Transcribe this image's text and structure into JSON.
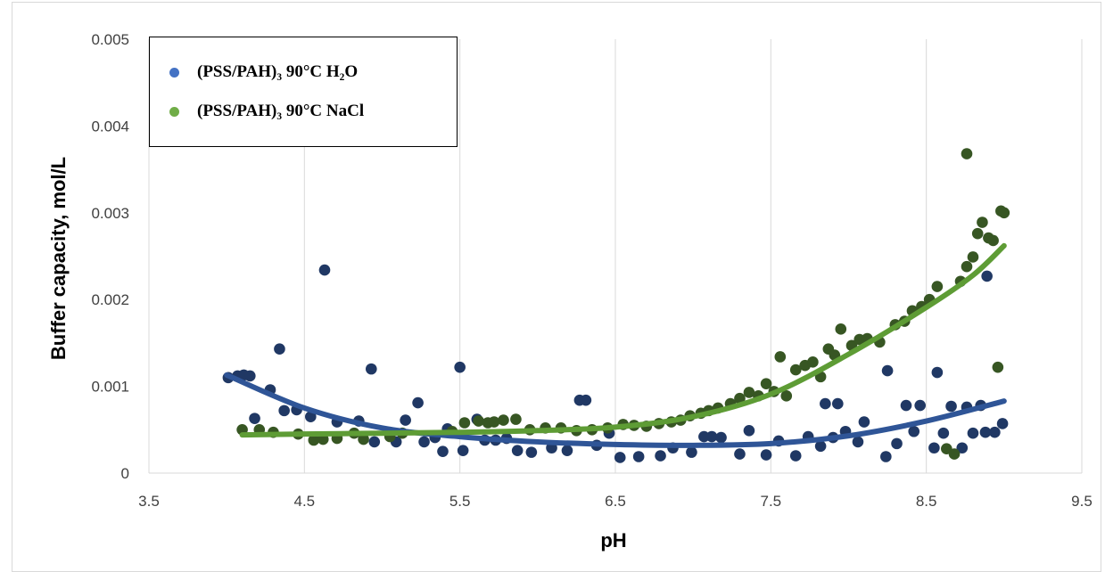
{
  "chart_data": {
    "type": "scatter",
    "xlabel": "pH",
    "ylabel": "Buffer capacity, mol/L",
    "xlim": [
      3.5,
      9.5
    ],
    "ylim": [
      0,
      0.005
    ],
    "x_ticks": [
      "3.5",
      "4.5",
      "5.5",
      "6.5",
      "7.5",
      "8.5",
      "9.5"
    ],
    "y_ticks": [
      "0",
      "0.001",
      "0.002",
      "0.003",
      "0.004",
      "0.005"
    ],
    "grid": "vertical",
    "legend_position": "top-left",
    "trendline": "polynomial",
    "series": [
      {
        "name": "(PSS/PAH)₃ 90°C H₂O",
        "marker_color": "#203864",
        "legend_color": "#4472c4",
        "trend_color": "#2f5597",
        "points": [
          [
            4.01,
            0.0011
          ],
          [
            4.07,
            0.00112
          ],
          [
            4.11,
            0.00113
          ],
          [
            4.15,
            0.00112
          ],
          [
            4.18,
            0.00063
          ],
          [
            4.28,
            0.00096
          ],
          [
            4.34,
            0.00143
          ],
          [
            4.37,
            0.00072
          ],
          [
            4.45,
            0.00073
          ],
          [
            4.54,
            0.00065
          ],
          [
            4.63,
            0.00234
          ],
          [
            4.71,
            0.00059
          ],
          [
            4.85,
            0.0006
          ],
          [
            4.93,
            0.0012
          ],
          [
            4.95,
            0.00036
          ],
          [
            5.05,
            0.00047
          ],
          [
            5.09,
            0.00036
          ],
          [
            5.15,
            0.00061
          ],
          [
            5.23,
            0.00081
          ],
          [
            5.27,
            0.00036
          ],
          [
            5.34,
            0.00041
          ],
          [
            5.39,
            0.00025
          ],
          [
            5.42,
            0.00051
          ],
          [
            5.5,
            0.00122
          ],
          [
            5.52,
            0.00026
          ],
          [
            5.61,
            0.00062
          ],
          [
            5.66,
            0.00038
          ],
          [
            5.73,
            0.00038
          ],
          [
            5.8,
            0.0004
          ],
          [
            5.87,
            0.00026
          ],
          [
            5.96,
            0.00024
          ],
          [
            6.09,
            0.00029
          ],
          [
            6.19,
            0.00026
          ],
          [
            6.27,
            0.00084
          ],
          [
            6.31,
            0.00084
          ],
          [
            6.38,
            0.00032
          ],
          [
            6.46,
            0.00046
          ],
          [
            6.53,
            0.00018
          ],
          [
            6.65,
            0.00019
          ],
          [
            6.79,
            0.0002
          ],
          [
            6.87,
            0.00029
          ],
          [
            6.99,
            0.00024
          ],
          [
            7.07,
            0.00042
          ],
          [
            7.12,
            0.00042
          ],
          [
            7.18,
            0.00041
          ],
          [
            7.3,
            0.00022
          ],
          [
            7.36,
            0.00049
          ],
          [
            7.47,
            0.00021
          ],
          [
            7.55,
            0.00037
          ],
          [
            7.66,
            0.0002
          ],
          [
            7.74,
            0.00042
          ],
          [
            7.82,
            0.00031
          ],
          [
            7.85,
            0.0008
          ],
          [
            7.9,
            0.00041
          ],
          [
            7.93,
            0.0008
          ],
          [
            7.98,
            0.00048
          ],
          [
            8.06,
            0.00036
          ],
          [
            8.1,
            0.00059
          ],
          [
            8.24,
            0.00019
          ],
          [
            8.25,
            0.00118
          ],
          [
            8.31,
            0.00034
          ],
          [
            8.37,
            0.00078
          ],
          [
            8.42,
            0.00048
          ],
          [
            8.46,
            0.00078
          ],
          [
            8.55,
            0.00029
          ],
          [
            8.57,
            0.00116
          ],
          [
            8.61,
            0.00046
          ],
          [
            8.66,
            0.00077
          ],
          [
            8.73,
            0.00029
          ],
          [
            8.76,
            0.00076
          ],
          [
            8.8,
            0.00046
          ],
          [
            8.85,
            0.00078
          ],
          [
            8.88,
            0.00047
          ],
          [
            8.89,
            0.00227
          ],
          [
            8.94,
            0.00047
          ],
          [
            8.99,
            0.00057
          ]
        ],
        "trend": [
          [
            4.0,
            0.00113
          ],
          [
            4.5,
            0.00075
          ],
          [
            5.0,
            0.00052
          ],
          [
            5.5,
            0.00042
          ],
          [
            6.0,
            0.00036
          ],
          [
            6.5,
            0.00033
          ],
          [
            7.0,
            0.00032
          ],
          [
            7.5,
            0.00034
          ],
          [
            8.0,
            0.00043
          ],
          [
            8.5,
            0.0006
          ],
          [
            9.0,
            0.00083
          ]
        ]
      },
      {
        "name": "(PSS/PAH)₃ 90°C NaCl",
        "marker_color": "#375623",
        "legend_color": "#70ad47",
        "trend_color": "#5e9c35",
        "points": [
          [
            4.1,
            0.0005
          ],
          [
            4.21,
            0.0005
          ],
          [
            4.3,
            0.00047
          ],
          [
            4.46,
            0.00045
          ],
          [
            4.56,
            0.00038
          ],
          [
            4.62,
            0.00039
          ],
          [
            4.71,
            0.0004
          ],
          [
            4.82,
            0.00046
          ],
          [
            4.88,
            0.00039
          ],
          [
            5.05,
            0.00042
          ],
          [
            5.13,
            0.00046
          ],
          [
            5.45,
            0.00048
          ],
          [
            5.53,
            0.00058
          ],
          [
            5.62,
            0.0006
          ],
          [
            5.68,
            0.00058
          ],
          [
            5.72,
            0.00059
          ],
          [
            5.78,
            0.00061
          ],
          [
            5.86,
            0.00062
          ],
          [
            5.95,
            0.0005
          ],
          [
            6.05,
            0.00052
          ],
          [
            6.15,
            0.00052
          ],
          [
            6.25,
            0.00049
          ],
          [
            6.35,
            0.0005
          ],
          [
            6.45,
            0.00052
          ],
          [
            6.55,
            0.00056
          ],
          [
            6.62,
            0.00055
          ],
          [
            6.7,
            0.00054
          ],
          [
            6.78,
            0.00057
          ],
          [
            6.86,
            0.00059
          ],
          [
            6.92,
            0.00061
          ],
          [
            6.98,
            0.00066
          ],
          [
            7.05,
            0.00069
          ],
          [
            7.1,
            0.00072
          ],
          [
            7.16,
            0.00075
          ],
          [
            7.24,
            0.0008
          ],
          [
            7.3,
            0.00086
          ],
          [
            7.36,
            0.00093
          ],
          [
            7.42,
            0.00089
          ],
          [
            7.47,
            0.00103
          ],
          [
            7.52,
            0.00094
          ],
          [
            7.56,
            0.00134
          ],
          [
            7.6,
            0.00089
          ],
          [
            7.66,
            0.00119
          ],
          [
            7.72,
            0.00124
          ],
          [
            7.77,
            0.00128
          ],
          [
            7.82,
            0.00111
          ],
          [
            7.87,
            0.00143
          ],
          [
            7.91,
            0.00136
          ],
          [
            7.95,
            0.00166
          ],
          [
            8.02,
            0.00147
          ],
          [
            8.07,
            0.00154
          ],
          [
            8.12,
            0.00155
          ],
          [
            8.2,
            0.00151
          ],
          [
            8.3,
            0.00171
          ],
          [
            8.36,
            0.00175
          ],
          [
            8.41,
            0.00187
          ],
          [
            8.47,
            0.00192
          ],
          [
            8.52,
            0.002
          ],
          [
            8.57,
            0.00215
          ],
          [
            8.63,
            0.00028
          ],
          [
            8.68,
            0.00022
          ],
          [
            8.72,
            0.00221
          ],
          [
            8.76,
            0.00238
          ],
          [
            8.8,
            0.00249
          ],
          [
            8.83,
            0.00276
          ],
          [
            8.86,
            0.00289
          ],
          [
            8.9,
            0.00271
          ],
          [
            8.93,
            0.00268
          ],
          [
            8.96,
            0.00122
          ],
          [
            8.98,
            0.00302
          ],
          [
            9.0,
            0.003
          ],
          [
            8.76,
            0.00368
          ]
        ],
        "trend": [
          [
            4.1,
            0.00044
          ],
          [
            4.5,
            0.00045
          ],
          [
            5.0,
            0.00046
          ],
          [
            5.5,
            0.00047
          ],
          [
            6.0,
            0.00049
          ],
          [
            6.5,
            0.00053
          ],
          [
            7.0,
            0.00065
          ],
          [
            7.5,
            0.00091
          ],
          [
            8.0,
            0.00137
          ],
          [
            8.5,
            0.00191
          ],
          [
            8.8,
            0.00228
          ],
          [
            9.0,
            0.00262
          ]
        ]
      }
    ]
  }
}
